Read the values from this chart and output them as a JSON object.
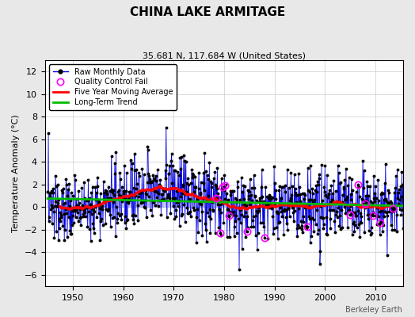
{
  "title": "CHINA LAKE ARMITAGE",
  "subtitle": "35.681 N, 117.684 W (United States)",
  "ylabel": "Temperature Anomaly (°C)",
  "attribution": "Berkeley Earth",
  "year_start": 1945,
  "year_end": 2016,
  "ylim": [
    -7,
    13
  ],
  "yticks": [
    -6,
    -4,
    -2,
    0,
    2,
    4,
    6,
    8,
    10,
    12
  ],
  "xticks": [
    1950,
    1960,
    1970,
    1980,
    1990,
    2000,
    2010
  ],
  "bg_color": "#e8e8e8",
  "plot_bg_color": "#ffffff",
  "raw_line_color": "#0000dd",
  "stem_color": "#8888ff",
  "dot_color": "#000000",
  "moving_avg_color": "#ff0000",
  "trend_color": "#00bb00",
  "qc_fail_color": "#ff00ff",
  "seed": 137,
  "figwidth": 5.24,
  "figheight": 4.0,
  "dpi": 100
}
